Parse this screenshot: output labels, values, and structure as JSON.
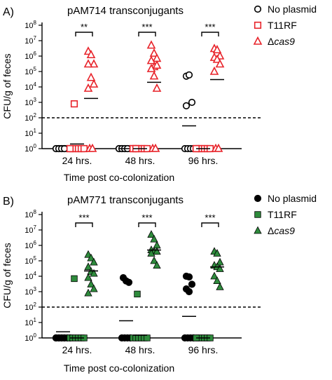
{
  "chart_data": [
    {
      "panel_label": "A)",
      "type": "scatter",
      "title": "pAM714 transconjugants",
      "xlabel": "Time post co-colonization",
      "ylabel": "CFU/g of feces",
      "yscale": "log",
      "ylim": [
        1,
        100000000
      ],
      "y_ticks": [
        "10^0",
        "10^1",
        "10^2",
        "10^3",
        "10^4",
        "10^5",
        "10^6",
        "10^7",
        "10^8"
      ],
      "categories": [
        "24 hrs.",
        "48 hrs.",
        "96 hrs."
      ],
      "detection_limit": 100,
      "marker_style": "open",
      "series": [
        {
          "name": "No plasmid",
          "marker": "circle",
          "color": "#000000",
          "points": [
            {
              "group": 0,
              "values": [
                1,
                1,
                1,
                1,
                1,
                1,
                1,
                1,
                1,
                1
              ]
            },
            {
              "group": 1,
              "values": [
                1,
                1,
                1,
                1,
                1,
                1,
                1,
                1,
                1,
                1
              ]
            },
            {
              "group": 2,
              "values": [
                50000,
                60000,
                1000,
                600,
                1,
                1,
                1,
                1
              ]
            }
          ],
          "means": [
            1.5,
            1,
            30
          ]
        },
        {
          "name": "T11RF",
          "marker": "square",
          "color": "#e8232a",
          "points": [
            {
              "group": 0,
              "values": [
                800,
                1,
                1,
                1,
                1,
                1,
                1,
                1
              ]
            },
            {
              "group": 1,
              "values": [
                1,
                1,
                1,
                1,
                1,
                1,
                1,
                1
              ]
            },
            {
              "group": 2,
              "values": [
                1,
                1,
                1,
                1,
                1,
                1,
                1
              ]
            }
          ],
          "means": [
            2,
            1,
            1
          ]
        },
        {
          "name": "Δcas9",
          "marker": "triangle",
          "color": "#e8232a",
          "points": [
            {
              "group": 0,
              "values": [
                2000000,
                1200000,
                300000,
                300000,
                40000,
                15000,
                8000,
                1,
                1
              ]
            },
            {
              "group": 1,
              "values": [
                5000000,
                1500000,
                700000,
                500000,
                200000,
                250000,
                150000,
                50000,
                8000,
                1,
                1
              ]
            },
            {
              "group": 2,
              "values": [
                3000000,
                2500000,
                1000000,
                800000,
                600000,
                300000,
                100000,
                1,
                1
              ]
            }
          ],
          "means": [
            1800,
            20000,
            30000
          ]
        }
      ],
      "significance": [
        "**",
        "***",
        "***"
      ]
    },
    {
      "panel_label": "B)",
      "type": "scatter",
      "title": "pAM771 transconjugants",
      "xlabel": "Time post co-colonization",
      "ylabel": "CFU/g of feces",
      "yscale": "log",
      "ylim": [
        1,
        100000000
      ],
      "y_ticks": [
        "10^0",
        "10^1",
        "10^2",
        "10^3",
        "10^4",
        "10^5",
        "10^6",
        "10^7",
        "10^8"
      ],
      "categories": [
        "24 hrs.",
        "48 hrs.",
        "96 hrs."
      ],
      "detection_limit": 100,
      "marker_style": "filled",
      "series": [
        {
          "name": "No plasmid",
          "marker": "circle",
          "color": "#000000",
          "points": [
            {
              "group": 0,
              "values": [
                1,
                1,
                1,
                1,
                1,
                1,
                1,
                1,
                1,
                1
              ]
            },
            {
              "group": 1,
              "values": [
                8000,
                5000,
                4000,
                1,
                1,
                1,
                1
              ]
            },
            {
              "group": 2,
              "values": [
                10000,
                9000,
                3000,
                1500,
                1000,
                1,
                1,
                1,
                1
              ]
            }
          ],
          "means": [
            2.5,
            13,
            25
          ]
        },
        {
          "name": "T11RF",
          "marker": "square",
          "color": "#2e8b3c",
          "points": [
            {
              "group": 0,
              "values": [
                7000,
                1,
                1,
                1,
                1,
                1,
                1
              ]
            },
            {
              "group": 1,
              "values": [
                700,
                1,
                1,
                1,
                1,
                1,
                1
              ]
            },
            {
              "group": 2,
              "values": [
                1,
                1,
                1,
                1,
                1,
                1,
                1
              ]
            }
          ],
          "means": [
            1,
            1.5,
            1
          ]
        },
        {
          "name": "Δcas9",
          "marker": "triangle",
          "color": "#2e8b3c",
          "points": [
            {
              "group": 0,
              "values": [
                250000,
                150000,
                80000,
                40000,
                20000,
                15000,
                8000,
                3000,
                1500,
                800
              ]
            },
            {
              "group": 1,
              "values": [
                5000000,
                2500000,
                1000000,
                500000,
                400000,
                400000,
                300000,
                100000,
                50000
              ]
            },
            {
              "group": 2,
              "values": [
                400000,
                300000,
                80000,
                50000,
                40000,
                30000,
                10000,
                5000,
                2000
              ]
            }
          ],
          "means": [
            22000,
            500000,
            40000
          ]
        }
      ],
      "significance": [
        "***",
        "***",
        "***"
      ]
    }
  ]
}
